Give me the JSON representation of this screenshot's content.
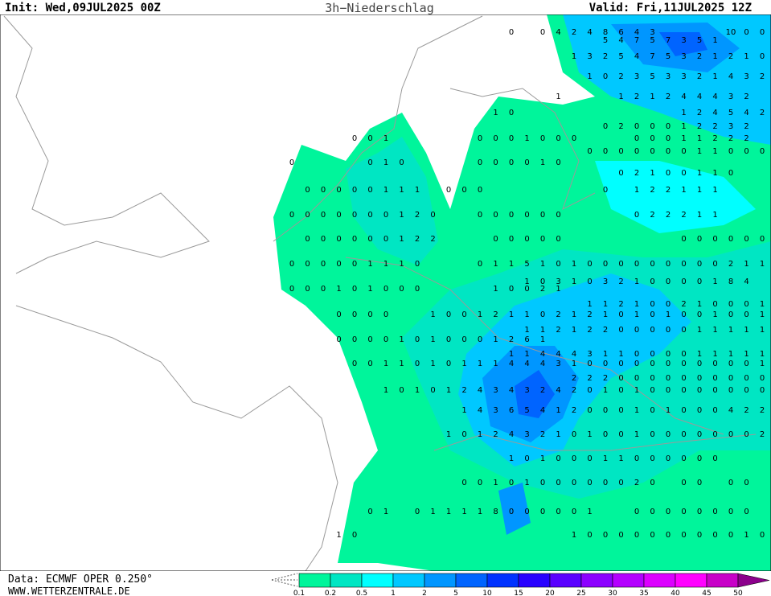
{
  "header": {
    "init": "Init: Wed,09JUL2025 00Z",
    "title": "3h−Niederschlag",
    "valid": "Valid: Fri,11JUL2025 12Z"
  },
  "footer": {
    "source": "Data: ECMWF OPER 0.250°",
    "website": "WWW.WETTERZENTRALE.DE"
  },
  "legend": {
    "levels": [
      0.1,
      0.2,
      0.5,
      1,
      2,
      5,
      10,
      15,
      20,
      25,
      30,
      35,
      40,
      45,
      50
    ],
    "colors": [
      "#00f59b",
      "#00e6c3",
      "#00ffff",
      "#00c8ff",
      "#0096ff",
      "#0064ff",
      "#0032ff",
      "#2800ff",
      "#5a00ff",
      "#8c00ff",
      "#b400ff",
      "#dc00ff",
      "#ff00ff",
      "#c800c8",
      "#8c008c"
    ]
  },
  "map": {
    "values": [
      [
        null,
        null,
        null,
        null,
        null,
        null,
        null,
        null,
        null,
        null,
        null,
        null,
        null,
        null,
        0,
        null,
        0,
        4,
        2,
        4,
        8,
        6,
        4,
        3,
        null,
        null,
        null,
        null,
        10,
        0,
        0
      ],
      [
        null,
        null,
        null,
        null,
        null,
        null,
        null,
        null,
        null,
        null,
        null,
        null,
        null,
        null,
        null,
        null,
        null,
        null,
        null,
        null,
        5,
        4,
        7,
        5,
        7,
        3,
        5,
        1,
        null,
        null,
        null
      ],
      [
        null,
        null,
        null,
        null,
        null,
        null,
        null,
        null,
        null,
        null,
        null,
        null,
        null,
        null,
        null,
        null,
        null,
        null,
        1,
        3,
        2,
        5,
        4,
        7,
        5,
        3,
        2,
        1,
        2,
        1,
        0
      ],
      [
        null,
        null,
        null,
        null,
        null,
        null,
        null,
        null,
        null,
        null,
        null,
        null,
        null,
        null,
        null,
        null,
        null,
        null,
        null,
        1,
        0,
        2,
        3,
        5,
        3,
        3,
        2,
        1,
        4,
        3,
        2
      ],
      [
        null,
        null,
        null,
        null,
        null,
        null,
        null,
        null,
        null,
        null,
        null,
        null,
        null,
        null,
        null,
        null,
        null,
        1,
        null,
        null,
        null,
        1,
        2,
        1,
        2,
        4,
        4,
        4,
        3,
        2,
        null
      ],
      [
        null,
        null,
        null,
        null,
        null,
        null,
        null,
        null,
        null,
        null,
        null,
        null,
        null,
        1,
        0,
        null,
        null,
        null,
        null,
        null,
        null,
        null,
        null,
        null,
        null,
        1,
        2,
        4,
        5,
        4,
        2
      ],
      [
        null,
        null,
        null,
        null,
        null,
        null,
        null,
        null,
        null,
        null,
        null,
        null,
        null,
        null,
        null,
        null,
        null,
        null,
        null,
        null,
        0,
        2,
        0,
        0,
        0,
        1,
        2,
        2,
        3,
        2,
        null
      ],
      [
        null,
        null,
        null,
        null,
        0,
        0,
        1,
        null,
        null,
        null,
        null,
        null,
        0,
        0,
        0,
        1,
        0,
        0,
        0,
        null,
        null,
        null,
        0,
        0,
        0,
        1,
        1,
        2,
        2,
        2,
        null
      ],
      [
        null,
        null,
        null,
        null,
        null,
        null,
        null,
        null,
        null,
        null,
        null,
        null,
        null,
        null,
        null,
        null,
        null,
        null,
        null,
        0,
        0,
        0,
        0,
        0,
        0,
        0,
        1,
        1,
        0,
        0,
        0
      ],
      [
        0,
        null,
        null,
        null,
        null,
        0,
        1,
        0,
        null,
        null,
        null,
        null,
        0,
        0,
        0,
        0,
        1,
        0,
        null,
        null,
        null,
        null,
        null,
        null,
        null,
        null,
        null,
        null,
        null,
        null,
        null
      ],
      [
        null,
        null,
        null,
        null,
        null,
        null,
        null,
        null,
        null,
        null,
        null,
        null,
        null,
        null,
        null,
        null,
        null,
        null,
        null,
        null,
        null,
        0,
        2,
        1,
        0,
        0,
        1,
        1,
        0,
        null,
        null
      ],
      [
        null,
        0,
        0,
        0,
        0,
        0,
        1,
        1,
        1,
        null,
        0,
        0,
        0,
        null,
        null,
        null,
        null,
        null,
        null,
        null,
        0,
        null,
        1,
        2,
        2,
        1,
        1,
        1,
        null,
        null,
        null
      ],
      [
        0,
        0,
        0,
        0,
        0,
        0,
        0,
        1,
        2,
        0,
        null,
        null,
        0,
        0,
        0,
        0,
        0,
        0,
        null,
        null,
        null,
        null,
        0,
        2,
        2,
        2,
        1,
        1,
        null,
        null,
        null
      ],
      [
        null,
        0,
        0,
        0,
        0,
        0,
        0,
        1,
        2,
        2,
        null,
        null,
        null,
        0,
        0,
        0,
        0,
        0,
        null,
        null,
        null,
        null,
        null,
        null,
        null,
        0,
        0,
        0,
        0,
        0,
        0
      ],
      [
        0,
        0,
        0,
        0,
        0,
        1,
        1,
        1,
        0,
        null,
        null,
        null,
        0,
        1,
        1,
        5,
        1,
        0,
        1,
        0,
        0,
        0,
        0,
        0,
        0,
        0,
        0,
        0,
        2,
        1,
        1
      ],
      [
        null,
        null,
        null,
        null,
        null,
        null,
        null,
        null,
        null,
        null,
        null,
        null,
        null,
        null,
        null,
        1,
        0,
        3,
        1,
        0,
        3,
        2,
        1,
        0,
        0,
        0,
        0,
        1,
        8,
        4,
        null
      ],
      [
        0,
        0,
        0,
        1,
        0,
        1,
        0,
        0,
        0,
        null,
        null,
        null,
        null,
        1,
        0,
        0,
        2,
        1,
        null,
        null,
        null,
        null,
        null,
        null,
        null,
        null,
        null,
        null,
        null,
        null,
        null
      ],
      [
        null,
        null,
        null,
        null,
        null,
        null,
        null,
        null,
        null,
        null,
        null,
        null,
        null,
        null,
        null,
        null,
        null,
        null,
        null,
        1,
        1,
        2,
        1,
        0,
        0,
        2,
        1,
        0,
        0,
        0,
        1
      ],
      [
        null,
        null,
        null,
        0,
        0,
        0,
        0,
        null,
        null,
        1,
        0,
        0,
        1,
        2,
        1,
        1,
        0,
        2,
        1,
        2,
        1,
        0,
        1,
        0,
        1,
        0,
        0,
        1,
        0,
        0,
        1
      ],
      [
        null,
        null,
        null,
        null,
        null,
        null,
        null,
        null,
        null,
        null,
        null,
        null,
        null,
        null,
        null,
        1,
        1,
        2,
        1,
        2,
        2,
        0,
        0,
        0,
        0,
        0,
        1,
        1,
        1,
        1,
        1
      ],
      [
        null,
        null,
        null,
        0,
        0,
        0,
        0,
        1,
        0,
        1,
        0,
        0,
        0,
        1,
        2,
        6,
        1,
        null,
        null,
        null,
        null,
        null,
        null,
        null,
        null,
        null,
        null,
        null,
        null,
        null,
        null
      ],
      [
        null,
        null,
        null,
        null,
        null,
        null,
        null,
        null,
        null,
        null,
        null,
        null,
        null,
        null,
        1,
        1,
        4,
        4,
        4,
        3,
        1,
        1,
        0,
        0,
        0,
        0,
        1,
        1,
        1,
        1,
        1
      ],
      [
        null,
        null,
        null,
        null,
        0,
        0,
        1,
        1,
        0,
        1,
        0,
        1,
        1,
        1,
        4,
        4,
        4,
        3,
        1,
        0,
        0,
        0,
        0,
        0,
        0,
        0,
        0,
        0,
        0,
        0,
        1
      ],
      [
        null,
        null,
        null,
        null,
        null,
        null,
        null,
        null,
        null,
        null,
        null,
        null,
        null,
        null,
        null,
        null,
        null,
        null,
        2,
        2,
        2,
        0,
        0,
        0,
        0,
        0,
        0,
        0,
        0,
        0,
        0
      ],
      [
        null,
        null,
        null,
        null,
        null,
        null,
        1,
        0,
        1,
        0,
        1,
        2,
        4,
        3,
        4,
        3,
        2,
        4,
        2,
        0,
        1,
        0,
        1,
        0,
        0,
        0,
        0,
        0,
        0,
        0,
        0
      ],
      [
        null,
        null,
        null,
        null,
        null,
        null,
        null,
        null,
        null,
        null,
        null,
        1,
        4,
        3,
        6,
        5,
        4,
        1,
        2,
        0,
        0,
        0,
        1,
        0,
        1,
        0,
        0,
        0,
        4,
        2,
        2
      ],
      [
        null,
        null,
        null,
        null,
        null,
        null,
        null,
        null,
        null,
        null,
        1,
        0,
        1,
        2,
        4,
        3,
        2,
        1,
        0,
        1,
        0,
        0,
        1,
        0,
        0,
        0,
        0,
        0,
        0,
        0,
        2
      ],
      [
        null,
        null,
        null,
        null,
        null,
        null,
        null,
        null,
        null,
        null,
        null,
        null,
        null,
        null,
        1,
        0,
        1,
        0,
        0,
        0,
        1,
        1,
        0,
        0,
        0,
        0,
        0,
        0,
        null,
        null,
        null
      ],
      [
        null,
        null,
        null,
        null,
        null,
        null,
        null,
        null,
        null,
        null,
        null,
        0,
        0,
        1,
        0,
        1,
        0,
        0,
        0,
        0,
        0,
        0,
        2,
        0,
        null,
        0,
        0,
        null,
        0,
        0,
        null
      ],
      [
        null,
        null,
        null,
        null,
        null,
        0,
        1,
        null,
        0,
        1,
        1,
        1,
        1,
        8,
        0,
        0,
        0,
        0,
        0,
        1,
        null,
        null,
        0,
        0,
        0,
        0,
        0,
        0,
        0,
        0,
        null
      ],
      [
        null,
        null,
        null,
        1,
        0,
        null,
        null,
        null,
        null,
        null,
        null,
        null,
        null,
        null,
        null,
        null,
        null,
        null,
        1,
        0,
        0,
        0,
        0,
        0,
        0,
        0,
        0,
        0,
        0,
        1,
        0
      ]
    ]
  }
}
